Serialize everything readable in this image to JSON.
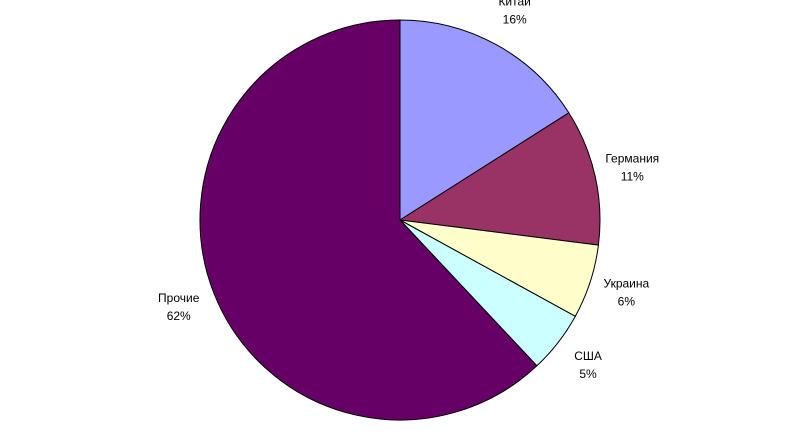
{
  "chart_data": {
    "type": "pie",
    "categories": [
      "Китай",
      "Германия",
      "Украина",
      "США",
      "Прочие"
    ],
    "values": [
      16,
      11,
      6,
      5,
      62
    ],
    "value_labels": [
      "16%",
      "11%",
      "6%",
      "5%",
      "62%"
    ],
    "colors": [
      "#9999ff",
      "#993366",
      "#ffffcc",
      "#ccffff",
      "#660066"
    ]
  }
}
